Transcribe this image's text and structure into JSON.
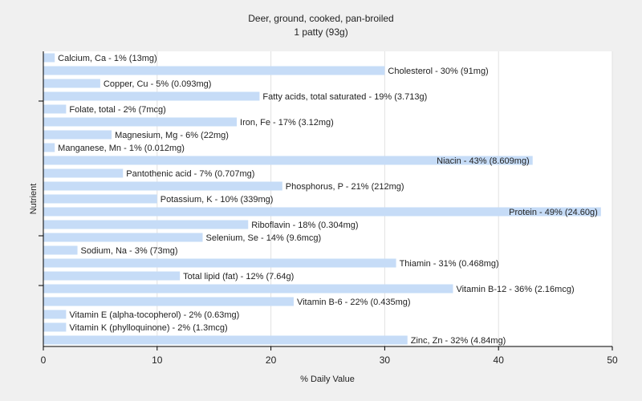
{
  "chart_data": {
    "type": "bar",
    "orientation": "horizontal",
    "title": "Deer, ground, cooked, pan-broiled",
    "subtitle": "1 patty (93g)",
    "xlabel": "% Daily Value",
    "ylabel": "Nutrient",
    "xlim": [
      0,
      50
    ],
    "xticks": [
      0,
      10,
      20,
      30,
      40,
      50
    ],
    "grid": true,
    "legend": "none",
    "bar_color": "#c6dcf7",
    "background_color": "#f0f0f0",
    "plot_background_color": "#ffffff",
    "categories": [
      "Calcium, Ca",
      "Cholesterol",
      "Copper, Cu",
      "Fatty acids, total saturated",
      "Folate, total",
      "Iron, Fe",
      "Magnesium, Mg",
      "Manganese, Mn",
      "Niacin",
      "Pantothenic acid",
      "Phosphorus, P",
      "Potassium, K",
      "Protein",
      "Riboflavin",
      "Selenium, Se",
      "Sodium, Na",
      "Thiamin",
      "Total lipid (fat)",
      "Vitamin B-12",
      "Vitamin B-6",
      "Vitamin E (alpha-tocopherol)",
      "Vitamin K (phylloquinone)",
      "Zinc, Zn"
    ],
    "values": [
      1,
      30,
      5,
      19,
      2,
      17,
      6,
      1,
      43,
      7,
      21,
      10,
      49,
      18,
      14,
      3,
      31,
      12,
      36,
      22,
      2,
      2,
      32
    ],
    "labels": [
      "Calcium, Ca - 1% (13mg)",
      "Cholesterol - 30% (91mg)",
      "Copper, Cu - 5% (0.093mg)",
      "Fatty acids, total saturated - 19% (3.713g)",
      "Folate, total - 2% (7mcg)",
      "Iron, Fe - 17% (3.12mg)",
      "Magnesium, Mg - 6% (22mg)",
      "Manganese, Mn - 1% (0.012mg)",
      "Niacin - 43% (8.609mg)",
      "Pantothenic acid - 7% (0.707mg)",
      "Phosphorus, P - 21% (212mg)",
      "Potassium, K - 10% (339mg)",
      "Protein - 49% (24.60g)",
      "Riboflavin - 18% (0.304mg)",
      "Selenium, Se - 14% (9.6mcg)",
      "Sodium, Na - 3% (73mg)",
      "Thiamin - 31% (0.468mg)",
      "Total lipid (fat) - 12% (7.64g)",
      "Vitamin B-12 - 36% (2.16mcg)",
      "Vitamin B-6 - 22% (0.435mg)",
      "Vitamin E (alpha-tocopherol) - 2% (0.63mg)",
      "Vitamin K (phylloquinone) - 2% (1.3mcg)",
      "Zinc, Zn - 32% (4.84mg)"
    ]
  }
}
